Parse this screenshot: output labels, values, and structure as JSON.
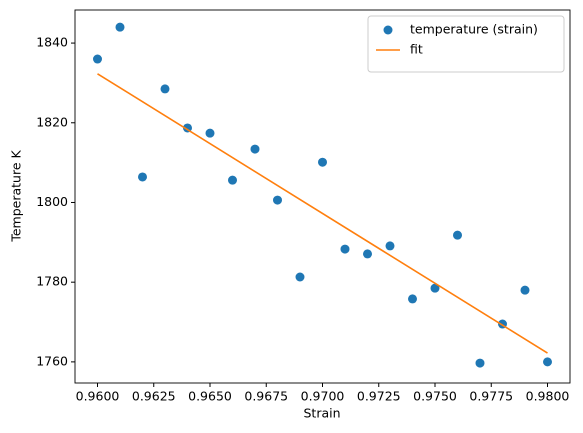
{
  "chart_data": {
    "type": "scatter",
    "x_label": "Strain",
    "y_label": "Temperature K",
    "xlim": [
      0.959,
      0.981
    ],
    "ylim": [
      1754.7,
      1848.3
    ],
    "xticks": [
      {
        "value": 0.96,
        "label": "0.9600"
      },
      {
        "value": 0.9625,
        "label": "0.9625"
      },
      {
        "value": 0.965,
        "label": "0.9650"
      },
      {
        "value": 0.9675,
        "label": "0.9675"
      },
      {
        "value": 0.97,
        "label": "0.9700"
      },
      {
        "value": 0.9725,
        "label": "0.9725"
      },
      {
        "value": 0.975,
        "label": "0.9750"
      },
      {
        "value": 0.9775,
        "label": "0.9775"
      },
      {
        "value": 0.98,
        "label": "0.9800"
      }
    ],
    "yticks": [
      1760,
      1780,
      1800,
      1820,
      1840
    ],
    "legend": "upper right",
    "series": [
      {
        "name": "temperature (strain)",
        "type": "scatter",
        "color": "#1f77b4",
        "x": [
          0.96,
          0.961,
          0.962,
          0.963,
          0.964,
          0.965,
          0.966,
          0.967,
          0.968,
          0.969,
          0.97,
          0.971,
          0.972,
          0.973,
          0.974,
          0.975,
          0.976,
          0.977,
          0.978,
          0.979,
          0.98
        ],
        "values": [
          1836.0,
          1844.0,
          1806.4,
          1828.5,
          1818.7,
          1817.4,
          1805.6,
          1813.4,
          1800.6,
          1781.3,
          1810.1,
          1788.3,
          1787.1,
          1789.1,
          1775.8,
          1778.5,
          1791.8,
          1759.7,
          1769.5,
          1778.0,
          1760.0
        ]
      },
      {
        "name": "fit",
        "type": "line",
        "color": "#ff7f0e",
        "x": [
          0.96,
          0.98
        ],
        "values": [
          1832.3,
          1762.2
        ]
      }
    ]
  }
}
